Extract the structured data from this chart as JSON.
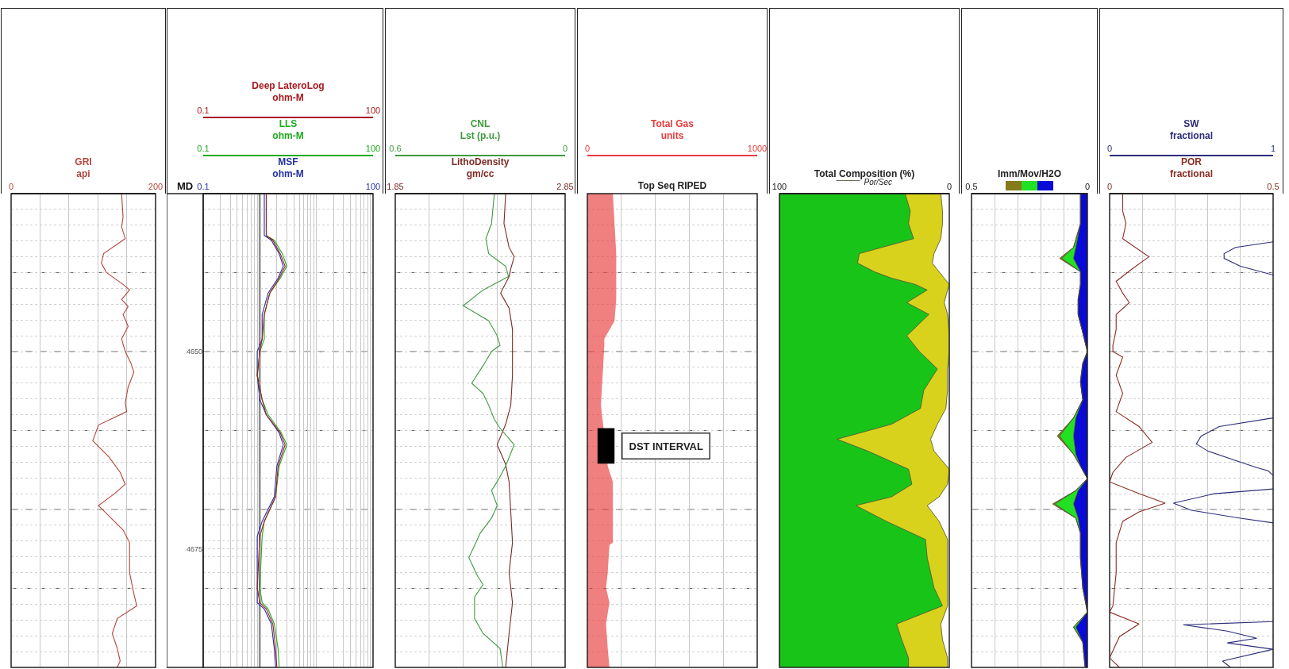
{
  "chart_data": [
    {
      "type": "line",
      "orientation": "horizontal",
      "xlabel": "GRI\napi",
      "xlim": [
        0,
        200
      ],
      "xticks": [
        0,
        {
          "value": 40,
          "label": null
        },
        {
          "value": 80,
          "label": null
        },
        {
          "value": 120,
          "label": null
        },
        {
          "value": 160,
          "label": null
        },
        200
      ],
      "ylim": [
        4690,
        4630
      ],
      "yticks": [
        {
          "value": 4632,
          "label": null
        },
        {
          "value": 4634,
          "label": null
        },
        {
          "value": 4636,
          "label": null
        },
        {
          "value": 4638,
          "label": null
        },
        {
          "value": 4640,
          "label": null
        },
        {
          "value": 4642,
          "label": null
        },
        {
          "value": 4644,
          "label": null
        },
        {
          "value": 4646,
          "label": null
        },
        {
          "value": 4648,
          "label": null
        },
        {
          "value": 4650,
          "label": null
        },
        {
          "value": 4652,
          "label": null
        },
        {
          "value": 4654,
          "label": null
        },
        {
          "value": 4656,
          "label": null
        },
        {
          "value": 4658,
          "label": null
        },
        {
          "value": 4660,
          "label": null
        },
        {
          "value": 4662,
          "label": null
        },
        {
          "value": 4664,
          "label": null
        },
        {
          "value": 4666,
          "label": null
        },
        {
          "value": 4668,
          "label": null
        },
        {
          "value": 4670,
          "label": null
        },
        {
          "value": 4672,
          "label": null
        },
        {
          "value": 4674,
          "label": null
        },
        {
          "value": 4676,
          "label": null
        },
        {
          "value": 4678,
          "label": null
        },
        {
          "value": 4680,
          "label": null
        },
        {
          "value": 4682,
          "label": null
        },
        {
          "value": 4684,
          "label": null
        },
        {
          "value": 4686,
          "label": null
        },
        {
          "value": 4688,
          "label": null
        }
      ],
      "tick_labels": "x",
      "grid": true,
      "series": [
        {
          "color": "#b5453a",
          "x": [
            4630,
            4633,
            4634.2,
            4635.7,
            4637.6,
            4638.8,
            4640,
            4641.5,
            4642.2,
            4643.4,
            4644.3,
            4645.3,
            4646.8,
            4648.4,
            4650,
            4651.5,
            4652.6,
            4654.5,
            4656.5,
            4657.6,
            4659.3,
            4661.3,
            4663.4,
            4665.3,
            4666.8,
            4668,
            4669.5,
            4670.7,
            4672.6,
            4674.2,
            4678,
            4680.7,
            4682.2,
            4683.8,
            4685.7,
            4687.6,
            4689.2,
            4690
          ],
          "values": [
            153,
            155,
            153,
            158,
            128,
            125,
            132,
            155,
            164,
            153,
            162,
            155,
            162,
            153,
            158,
            166,
            170,
            162,
            158,
            160,
            121,
            113,
            136,
            151,
            158,
            143,
            121,
            134,
            155,
            164,
            164,
            170,
            174,
            147,
            140,
            147,
            151,
            147
          ]
        }
      ]
    },
    {
      "type": "line",
      "orientation": "horizontal",
      "log": "x",
      "ylabel": "MD",
      "xlabel": "MSF\nohm-M",
      "xlim": [
        0.1,
        100
      ],
      "xticks": [
        0.1,
        {
          "value": 0.2,
          "label": null
        },
        {
          "value": 0.3,
          "label": null
        },
        {
          "value": 0.4,
          "label": null
        },
        {
          "value": 0.5,
          "label": null
        },
        {
          "value": 0.6,
          "label": null
        },
        {
          "value": 0.7,
          "label": null
        },
        {
          "value": 0.8,
          "label": null
        },
        {
          "value": 0.9,
          "label": null
        },
        {
          "value": 1,
          "label": null
        },
        {
          "value": 2,
          "label": null
        },
        {
          "value": 3,
          "label": null
        },
        {
          "value": 4,
          "label": null
        },
        {
          "value": 5,
          "label": null
        },
        {
          "value": 6,
          "label": null
        },
        {
          "value": 7,
          "label": null
        },
        {
          "value": 8,
          "label": null
        },
        {
          "value": 9,
          "label": null
        },
        {
          "value": 10,
          "label": null
        },
        {
          "value": 20,
          "label": null
        },
        {
          "value": 30,
          "label": null
        },
        {
          "value": 40,
          "label": null
        },
        {
          "value": 50,
          "label": null
        },
        {
          "value": 60,
          "label": null
        },
        {
          "value": 70,
          "label": null
        },
        {
          "value": 80,
          "label": null
        },
        {
          "value": 90,
          "label": null
        },
        100
      ],
      "ylim": [
        4690,
        4630
      ],
      "yticks": [
        {
          "value": 4632,
          "label": null
        },
        {
          "value": 4634,
          "label": null
        },
        {
          "value": 4636,
          "label": null
        },
        {
          "value": 4638,
          "label": null
        },
        {
          "value": 4640,
          "label": null
        },
        {
          "value": 4642,
          "label": null
        },
        {
          "value": 4644,
          "label": null
        },
        {
          "value": 4646,
          "label": null
        },
        {
          "value": 4648,
          "label": null
        },
        {
          "value": 4650,
          "label": "4650"
        },
        {
          "value": 4652,
          "label": null
        },
        {
          "value": 4654,
          "label": null
        },
        {
          "value": 4656,
          "label": null
        },
        {
          "value": 4658,
          "label": null
        },
        {
          "value": 4660,
          "label": null
        },
        {
          "value": 4662,
          "label": null
        },
        {
          "value": 4664,
          "label": null
        },
        {
          "value": 4666,
          "label": null
        },
        {
          "value": 4668,
          "label": null
        },
        {
          "value": 4670,
          "label": null
        },
        {
          "value": 4672,
          "label": null
        },
        {
          "value": 4674,
          "label": null
        },
        {
          "value": 4675,
          "label": "4675"
        },
        {
          "value": 4676,
          "label": null
        },
        {
          "value": 4678,
          "label": null
        },
        {
          "value": 4680,
          "label": null
        },
        {
          "value": 4682,
          "label": null
        },
        {
          "value": 4684,
          "label": null
        },
        {
          "value": 4686,
          "label": null
        },
        {
          "value": 4688,
          "label": null
        }
      ],
      "grid": true,
      "series": [
        {
          "color": "#2330a8",
          "x": [
            4630,
            4635.3,
            4635.9,
            4637.6,
            4639.2,
            4640.7,
            4642.6,
            4645.3,
            4648.4,
            4650,
            4653,
            4656.1,
            4658,
            4660.3,
            4661.8,
            4664.5,
            4668.4,
            4671.5,
            4673.4,
            4679.9,
            4681.8,
            4682.6,
            4684.5,
            4687.6,
            4690
          ],
          "values": [
            1.2,
            1.2,
            1.6,
            2.2,
            2.6,
            2.1,
            1.4,
            1.1,
            1.1,
            0.9,
            0.9,
            1.0,
            1.3,
            2.2,
            2.6,
            2.0,
            1.8,
            1.1,
            0.9,
            0.9,
            0.9,
            1.2,
            1.6,
            1.8,
            1.9
          ]
        }
      ]
    },
    {
      "type": "line",
      "orientation": "horizontal",
      "log": "x",
      "xlabel": "LLS\nohm-M",
      "xlim": [
        0.1,
        100
      ],
      "xticks": [
        0.1,
        100
      ],
      "ylim": [
        4690,
        4630
      ],
      "tick_labels": "x",
      "series": [
        {
          "color": "#1faa1f",
          "x": [
            4630,
            4635.3,
            4635.9,
            4637.6,
            4639.2,
            4640.7,
            4642.6,
            4645.3,
            4648.4,
            4650,
            4653,
            4656.1,
            4658,
            4660.3,
            4661.8,
            4664.5,
            4668.4,
            4671.5,
            4673.4,
            4679.9,
            4681.8,
            4682.6,
            4684.5,
            4687.6,
            4690
          ],
          "values": [
            1.3,
            1.3,
            1.8,
            2.5,
            3.0,
            2.3,
            1.5,
            1.2,
            1.2,
            1.0,
            0.9,
            1.1,
            1.4,
            2.4,
            3.0,
            2.2,
            1.9,
            1.2,
            1.1,
            1.0,
            1.1,
            1.4,
            1.8,
            2.1,
            2.2
          ]
        }
      ]
    },
    {
      "type": "line",
      "orientation": "horizontal",
      "log": "x",
      "xlabel": "Deep LateroLog\nohm-M",
      "xlim": [
        0.1,
        100
      ],
      "xticks": [
        0.1,
        100
      ],
      "ylim": [
        4690,
        4630
      ],
      "tick_labels": "x",
      "series": [
        {
          "color": "#a8181e",
          "x": [
            4630,
            4635.3,
            4635.9,
            4637.6,
            4639.2,
            4640.7,
            4642.6,
            4645.3,
            4648.4,
            4650,
            4653,
            4656.1,
            4658,
            4660.3,
            4661.8,
            4664.5,
            4668.4,
            4671.5,
            4673.4,
            4679.9,
            4681.8,
            4682.6,
            4684.5,
            4687.6,
            4690
          ],
          "values": [
            1.3,
            1.3,
            1.7,
            2.3,
            2.8,
            2.2,
            1.5,
            1.2,
            1.1,
            1.0,
            0.9,
            1.1,
            1.3,
            2.3,
            2.8,
            2.1,
            1.9,
            1.2,
            1.0,
            0.9,
            1.0,
            1.3,
            1.7,
            1.9,
            2.0
          ]
        }
      ]
    },
    {
      "type": "line",
      "orientation": "horizontal",
      "xlabel": "LithoDensity\ngm/cc",
      "x2label": "CNL\nLst (p.u.)",
      "xlim": [
        1.85,
        2.85
      ],
      "xticks": [
        1.85,
        {
          "value": 2.05,
          "label": null
        },
        {
          "value": 2.25,
          "label": null
        },
        {
          "value": 2.45,
          "label": null
        },
        {
          "value": 2.65,
          "label": null
        },
        2.85
      ],
      "x2lim": [
        0.6,
        0
      ],
      "x2ticks": [
        0.6,
        0
      ],
      "ylim": [
        4690,
        4630
      ],
      "yticks": [
        {
          "value": 4632,
          "label": null
        },
        {
          "value": 4634,
          "label": null
        },
        {
          "value": 4636,
          "label": null
        },
        {
          "value": 4638,
          "label": null
        },
        {
          "value": 4640,
          "label": null
        },
        {
          "value": 4642,
          "label": null
        },
        {
          "value": 4644,
          "label": null
        },
        {
          "value": 4646,
          "label": null
        },
        {
          "value": 4648,
          "label": null
        },
        {
          "value": 4650,
          "label": null
        },
        {
          "value": 4652,
          "label": null
        },
        {
          "value": 4654,
          "label": null
        },
        {
          "value": 4656,
          "label": null
        },
        {
          "value": 4658,
          "label": null
        },
        {
          "value": 4660,
          "label": null
        },
        {
          "value": 4662,
          "label": null
        },
        {
          "value": 4664,
          "label": null
        },
        {
          "value": 4666,
          "label": null
        },
        {
          "value": 4668,
          "label": null
        },
        {
          "value": 4670,
          "label": null
        },
        {
          "value": 4672,
          "label": null
        },
        {
          "value": 4674,
          "label": null
        },
        {
          "value": 4676,
          "label": null
        },
        {
          "value": 4678,
          "label": null
        },
        {
          "value": 4680,
          "label": null
        },
        {
          "value": 4682,
          "label": null
        },
        {
          "value": 4684,
          "label": null
        },
        {
          "value": 4686,
          "label": null
        },
        {
          "value": 4688,
          "label": null
        }
      ],
      "tick_labels": "x",
      "grid": true,
      "series": [
        {
          "color": "#3d9b3d",
          "axis": "x2",
          "x": [
            4630,
            4633.8,
            4635.7,
            4637.6,
            4639.2,
            4640.5,
            4642.2,
            4644.2,
            4646.1,
            4648,
            4649.2,
            4650,
            4651.8,
            4654,
            4655.3,
            4656.8,
            4658.6,
            4659.7,
            4661.8,
            4664.5,
            4666.5,
            4667.6,
            4669.5,
            4671.1,
            4673,
            4676.1,
            4678.4,
            4679.5,
            4681.1,
            4683.8,
            4685.7,
            4687.6,
            4690
          ],
          "values": [
            0.25,
            0.26,
            0.28,
            0.27,
            0.21,
            0.2,
            0.29,
            0.36,
            0.27,
            0.24,
            0.23,
            0.26,
            0.29,
            0.33,
            0.29,
            0.27,
            0.25,
            0.23,
            0.18,
            0.21,
            0.24,
            0.26,
            0.24,
            0.26,
            0.3,
            0.34,
            0.31,
            0.29,
            0.32,
            0.32,
            0.29,
            0.23,
            0.22
          ]
        },
        {
          "color": "#7a2a24",
          "x": [
            4630,
            4633.8,
            4636.8,
            4638,
            4639.5,
            4640.5,
            4642.6,
            4644.5,
            4647.2,
            4650,
            4653,
            4656.8,
            4659.2,
            4661.8,
            4664.3,
            4666.5,
            4670.3,
            4674.2,
            4678,
            4681.8,
            4685.7,
            4690
          ],
          "values": [
            2.5,
            2.49,
            2.52,
            2.55,
            2.53,
            2.52,
            2.47,
            2.52,
            2.54,
            2.54,
            2.54,
            2.53,
            2.5,
            2.45,
            2.5,
            2.52,
            2.53,
            2.54,
            2.52,
            2.54,
            2.52,
            2.5
          ]
        }
      ]
    },
    {
      "type": "area",
      "orientation": "horizontal",
      "xlabel": "Top Seq RIPED",
      "x2label": "Total Gas\nunits",
      "x2lim": [
        0,
        1000
      ],
      "x2ticks": [
        0,
        {
          "value": 200,
          "label": null
        },
        {
          "value": 400,
          "label": null
        },
        {
          "value": 600,
          "label": null
        },
        {
          "value": 800,
          "label": null
        },
        1000
      ],
      "ylim": [
        4690,
        4630
      ],
      "yticks": [
        {
          "value": 4632,
          "label": null
        },
        {
          "value": 4634,
          "label": null
        },
        {
          "value": 4636,
          "label": null
        },
        {
          "value": 4638,
          "label": null
        },
        {
          "value": 4640,
          "label": null
        },
        {
          "value": 4642,
          "label": null
        },
        {
          "value": 4644,
          "label": null
        },
        {
          "value": 4646,
          "label": null
        },
        {
          "value": 4648,
          "label": null
        },
        {
          "value": 4650,
          "label": null
        },
        {
          "value": 4652,
          "label": null
        },
        {
          "value": 4654,
          "label": null
        },
        {
          "value": 4656,
          "label": null
        },
        {
          "value": 4658,
          "label": null
        },
        {
          "value": 4660,
          "label": null
        },
        {
          "value": 4662,
          "label": null
        },
        {
          "value": 4664,
          "label": null
        },
        {
          "value": 4666,
          "label": null
        },
        {
          "value": 4668,
          "label": null
        },
        {
          "value": 4670,
          "label": null
        },
        {
          "value": 4672,
          "label": null
        },
        {
          "value": 4674,
          "label": null
        },
        {
          "value": 4676,
          "label": null
        },
        {
          "value": 4678,
          "label": null
        },
        {
          "value": 4680,
          "label": null
        },
        {
          "value": 4682,
          "label": null
        },
        {
          "value": 4684,
          "label": null
        },
        {
          "value": 4686,
          "label": null
        },
        {
          "value": 4688,
          "label": null
        }
      ],
      "tick_labels": "x",
      "grid": true,
      "bands": [
        {
          "axis": "y",
          "from": 4659.7,
          "to": 4664.2,
          "label": "DST INTERVAL",
          "color": "#000000"
        }
      ],
      "series": [
        {
          "color": "#e83a3a",
          "axis": "x2",
          "x": [
            4630,
            4633.8,
            4637.6,
            4643.4,
            4646.1,
            4648.4,
            4649.2,
            4653,
            4656.8,
            4664.5,
            4666.5,
            4668.4,
            4674.2,
            4674.5,
            4678,
            4679.9,
            4681.8,
            4684.5,
            4687.6,
            4690
          ],
          "values": [
            150,
            160,
            170,
            170,
            160,
            100,
            100,
            90,
            80,
            120,
            150,
            150,
            150,
            130,
            120,
            110,
            130,
            110,
            120,
            130
          ]
        }
      ]
    },
    {
      "type": "area",
      "orientation": "horizontal",
      "stacked": true,
      "xlabel": "Total Composition (%)",
      "xlim": [
        100,
        0
      ],
      "xticks": [
        100,
        0
      ],
      "ylim": [
        4690,
        4630
      ],
      "tick_labels": "x",
      "legend": "top",
      "x": [
        4630,
        4632.2,
        4633.8,
        4635.7,
        4637.6,
        4638.8,
        4639.9,
        4640.7,
        4641.5,
        4642.2,
        4643.8,
        4645.3,
        4648,
        4649.9,
        4652.2,
        4654.9,
        4657.2,
        4659.2,
        4661.1,
        4662.6,
        4664.9,
        4666.8,
        4668.4,
        4669.5,
        4671.5,
        4673.8,
        4676.1,
        4679.9,
        4682.2,
        4684.5,
        4686.5,
        4688.8,
        4690
      ],
      "series": [
        {
          "name": "Por/Sec",
          "color": "#ffffff",
          "values": [
            5,
            4,
            4,
            5,
            9,
            10,
            6,
            3,
            0,
            1,
            3,
            1,
            0,
            0,
            1,
            1,
            2,
            7,
            11,
            9,
            0,
            1,
            6,
            13,
            6,
            1,
            1,
            1,
            1,
            5,
            4,
            1,
            1
          ]
        },
        {
          "color": "#d9d21c",
          "values": [
            21,
            19,
            20,
            16,
            44,
            44,
            38,
            31,
            20,
            12,
            22,
            11,
            25,
            18,
            6,
            14,
            15,
            27,
            55,
            39,
            24,
            21,
            28,
            42,
            31,
            13,
            12,
            8,
            3,
            26,
            24,
            23,
            23
          ]
        },
        {
          "color": "#18c418",
          "values": [
            74,
            77,
            76,
            79,
            47,
            46,
            56,
            66,
            80,
            87,
            75,
            88,
            75,
            82,
            93,
            85,
            83,
            66,
            34,
            52,
            76,
            78,
            66,
            45,
            63,
            86,
            87,
            91,
            96,
            69,
            72,
            76,
            76
          ]
        }
      ]
    },
    {
      "type": "area",
      "orientation": "horizontal",
      "stacked": true,
      "xlabel": "Imm/Mov/H2O",
      "xlim": [
        0.5,
        0
      ],
      "xticks": [
        0.5,
        {
          "value": 0.4,
          "label": null
        },
        {
          "value": 0.3,
          "label": null
        },
        {
          "value": 0.2,
          "label": null
        },
        {
          "value": 0.1,
          "label": null
        },
        0
      ],
      "ylim": [
        4690,
        4630
      ],
      "yticks": [
        {
          "value": 4632,
          "label": null
        },
        {
          "value": 4634,
          "label": null
        },
        {
          "value": 4636,
          "label": null
        },
        {
          "value": 4638,
          "label": null
        },
        {
          "value": 4640,
          "label": null
        },
        {
          "value": 4642,
          "label": null
        },
        {
          "value": 4644,
          "label": null
        },
        {
          "value": 4646,
          "label": null
        },
        {
          "value": 4648,
          "label": null
        },
        {
          "value": 4650,
          "label": null
        },
        {
          "value": 4652,
          "label": null
        },
        {
          "value": 4654,
          "label": null
        },
        {
          "value": 4656,
          "label": null
        },
        {
          "value": 4658,
          "label": null
        },
        {
          "value": 4660,
          "label": null
        },
        {
          "value": 4662,
          "label": null
        },
        {
          "value": 4664,
          "label": null
        },
        {
          "value": 4666,
          "label": null
        },
        {
          "value": 4668,
          "label": null
        },
        {
          "value": 4670,
          "label": null
        },
        {
          "value": 4672,
          "label": null
        },
        {
          "value": 4674,
          "label": null
        },
        {
          "value": 4676,
          "label": null
        },
        {
          "value": 4678,
          "label": null
        },
        {
          "value": 4680,
          "label": null
        },
        {
          "value": 4682,
          "label": null
        },
        {
          "value": 4684,
          "label": null
        },
        {
          "value": 4686,
          "label": null
        },
        {
          "value": 4688,
          "label": null
        }
      ],
      "tick_labels": "x",
      "grid": true,
      "x": [
        4630,
        4633.8,
        4636.8,
        4638.2,
        4639.9,
        4641.5,
        4643.4,
        4645.3,
        4647.6,
        4650,
        4651.5,
        4653.8,
        4656.1,
        4658.4,
        4660.7,
        4663,
        4664.5,
        4666.1,
        4667.6,
        4669.3,
        4671.1,
        4673,
        4676.1,
        4679.9,
        4683,
        4684.9,
        4686.8,
        4690
      ],
      "series": [
        {
          "color": "#0a0ad8",
          "values": [
            0.03,
            0.03,
            0.05,
            0.06,
            0.03,
            0.03,
            0.04,
            0.04,
            0.02,
            0,
            0.02,
            0.03,
            0.02,
            0.05,
            0.06,
            0.05,
            0.03,
            0,
            0.04,
            0.06,
            0.04,
            0.03,
            0.03,
            0.02,
            0,
            0.05,
            0.02,
            0.01
          ]
        },
        {
          "color": "#22e022",
          "values": [
            0,
            0,
            0.01,
            0.05,
            0,
            0,
            0,
            0,
            0,
            0,
            0,
            0,
            0,
            0.01,
            0.06,
            0.01,
            0,
            0,
            0.01,
            0.08,
            0.01,
            0,
            0,
            0,
            0,
            0.01,
            0,
            0
          ]
        },
        {
          "color": "#857b1a",
          "values": [
            0,
            0,
            0,
            0.01,
            0,
            0,
            0,
            0,
            0,
            0,
            0,
            0,
            0,
            0,
            0.01,
            0,
            0,
            0,
            0,
            0.01,
            0,
            0,
            0,
            0,
            0,
            0,
            0,
            0
          ]
        }
      ]
    },
    {
      "type": "line",
      "orientation": "horizontal",
      "xlabel": "POR\nfractional",
      "x2label": "SW\nfractional",
      "xlim": [
        0,
        0.5
      ],
      "xticks": [
        0,
        {
          "value": 0.1,
          "label": null
        },
        {
          "value": 0.2,
          "label": null
        },
        {
          "value": 0.3,
          "label": null
        },
        {
          "value": 0.4,
          "label": null
        },
        0.5
      ],
      "x2lim": [
        0,
        1
      ],
      "x2ticks": [
        0,
        1
      ],
      "ylim": [
        4690,
        4630
      ],
      "yticks": [
        {
          "value": 4632,
          "label": null
        },
        {
          "value": 4634,
          "label": null
        },
        {
          "value": 4636,
          "label": null
        },
        {
          "value": 4638,
          "label": null
        },
        {
          "value": 4640,
          "label": null
        },
        {
          "value": 4642,
          "label": null
        },
        {
          "value": 4644,
          "label": null
        },
        {
          "value": 4646,
          "label": null
        },
        {
          "value": 4648,
          "label": null
        },
        {
          "value": 4650,
          "label": null
        },
        {
          "value": 4652,
          "label": null
        },
        {
          "value": 4654,
          "label": null
        },
        {
          "value": 4656,
          "label": null
        },
        {
          "value": 4658,
          "label": null
        },
        {
          "value": 4660,
          "label": null
        },
        {
          "value": 4662,
          "label": null
        },
        {
          "value": 4664,
          "label": null
        },
        {
          "value": 4666,
          "label": null
        },
        {
          "value": 4668,
          "label": null
        },
        {
          "value": 4670,
          "label": null
        },
        {
          "value": 4672,
          "label": null
        },
        {
          "value": 4674,
          "label": null
        },
        {
          "value": 4676,
          "label": null
        },
        {
          "value": 4678,
          "label": null
        },
        {
          "value": 4680,
          "label": null
        },
        {
          "value": 4682,
          "label": null
        },
        {
          "value": 4684,
          "label": null
        },
        {
          "value": 4686,
          "label": null
        },
        {
          "value": 4688,
          "label": null
        }
      ],
      "tick_labels": "x",
      "grid": true,
      "series": [
        {
          "color": "#8a2d22",
          "x": [
            4630,
            4632.2,
            4633.8,
            4635.7,
            4638,
            4639.5,
            4641.1,
            4642.6,
            4643.8,
            4645.3,
            4647.2,
            4649.2,
            4650,
            4650.7,
            4653,
            4655.3,
            4657.6,
            4659.5,
            4661.5,
            4663.4,
            4665.3,
            4666.5,
            4668,
            4669.2,
            4670.3,
            4671.5,
            4674.2,
            4678,
            4682.2,
            4683,
            4684.5,
            4686.1,
            4688.8,
            4690
          ],
          "values": [
            0.04,
            0.04,
            0.05,
            0.04,
            0.12,
            0.07,
            0.02,
            0.04,
            0.06,
            0.02,
            0.02,
            0.01,
            0.01,
            0.04,
            0.02,
            0.04,
            0.02,
            0.09,
            0.13,
            0.05,
            0.01,
            0.0,
            0.09,
            0.17,
            0.09,
            0.04,
            0.02,
            0.02,
            0.01,
            0.0,
            0.09,
            0.03,
            0.0,
            0.03
          ]
        },
        {
          "color": "#2b2d7a",
          "axis": "x2",
          "x": [
            4636.1,
            4636.8,
            4637.6,
            4638.2,
            4639.2,
            4640.3,
            4645,
            4658.4,
            4659.5,
            4660.7,
            4661.7,
            4662.6,
            4663.8,
            4664.7,
            4665.1,
            4665.7,
            4666,
            4667.4,
            4668,
            4669.2,
            4670.1,
            4671.1,
            4671.7,
            4678,
            4684.2,
            4684.6,
            4685.4,
            4686.3,
            4686.9,
            4687.7,
            4689.2,
            4690
          ],
          "values": [
            1.0,
            0.77,
            0.7,
            0.7,
            0.8,
            1.0,
            null,
            1.0,
            0.67,
            0.56,
            0.53,
            0.6,
            0.77,
            0.9,
            0.97,
            1.0,
            null,
            1.0,
            0.64,
            0.39,
            0.5,
            0.8,
            1.0,
            null,
            1.0,
            0.45,
            0.72,
            0.9,
            0.72,
            1.0,
            0.69,
            0.74
          ]
        }
      ]
    }
  ]
}
